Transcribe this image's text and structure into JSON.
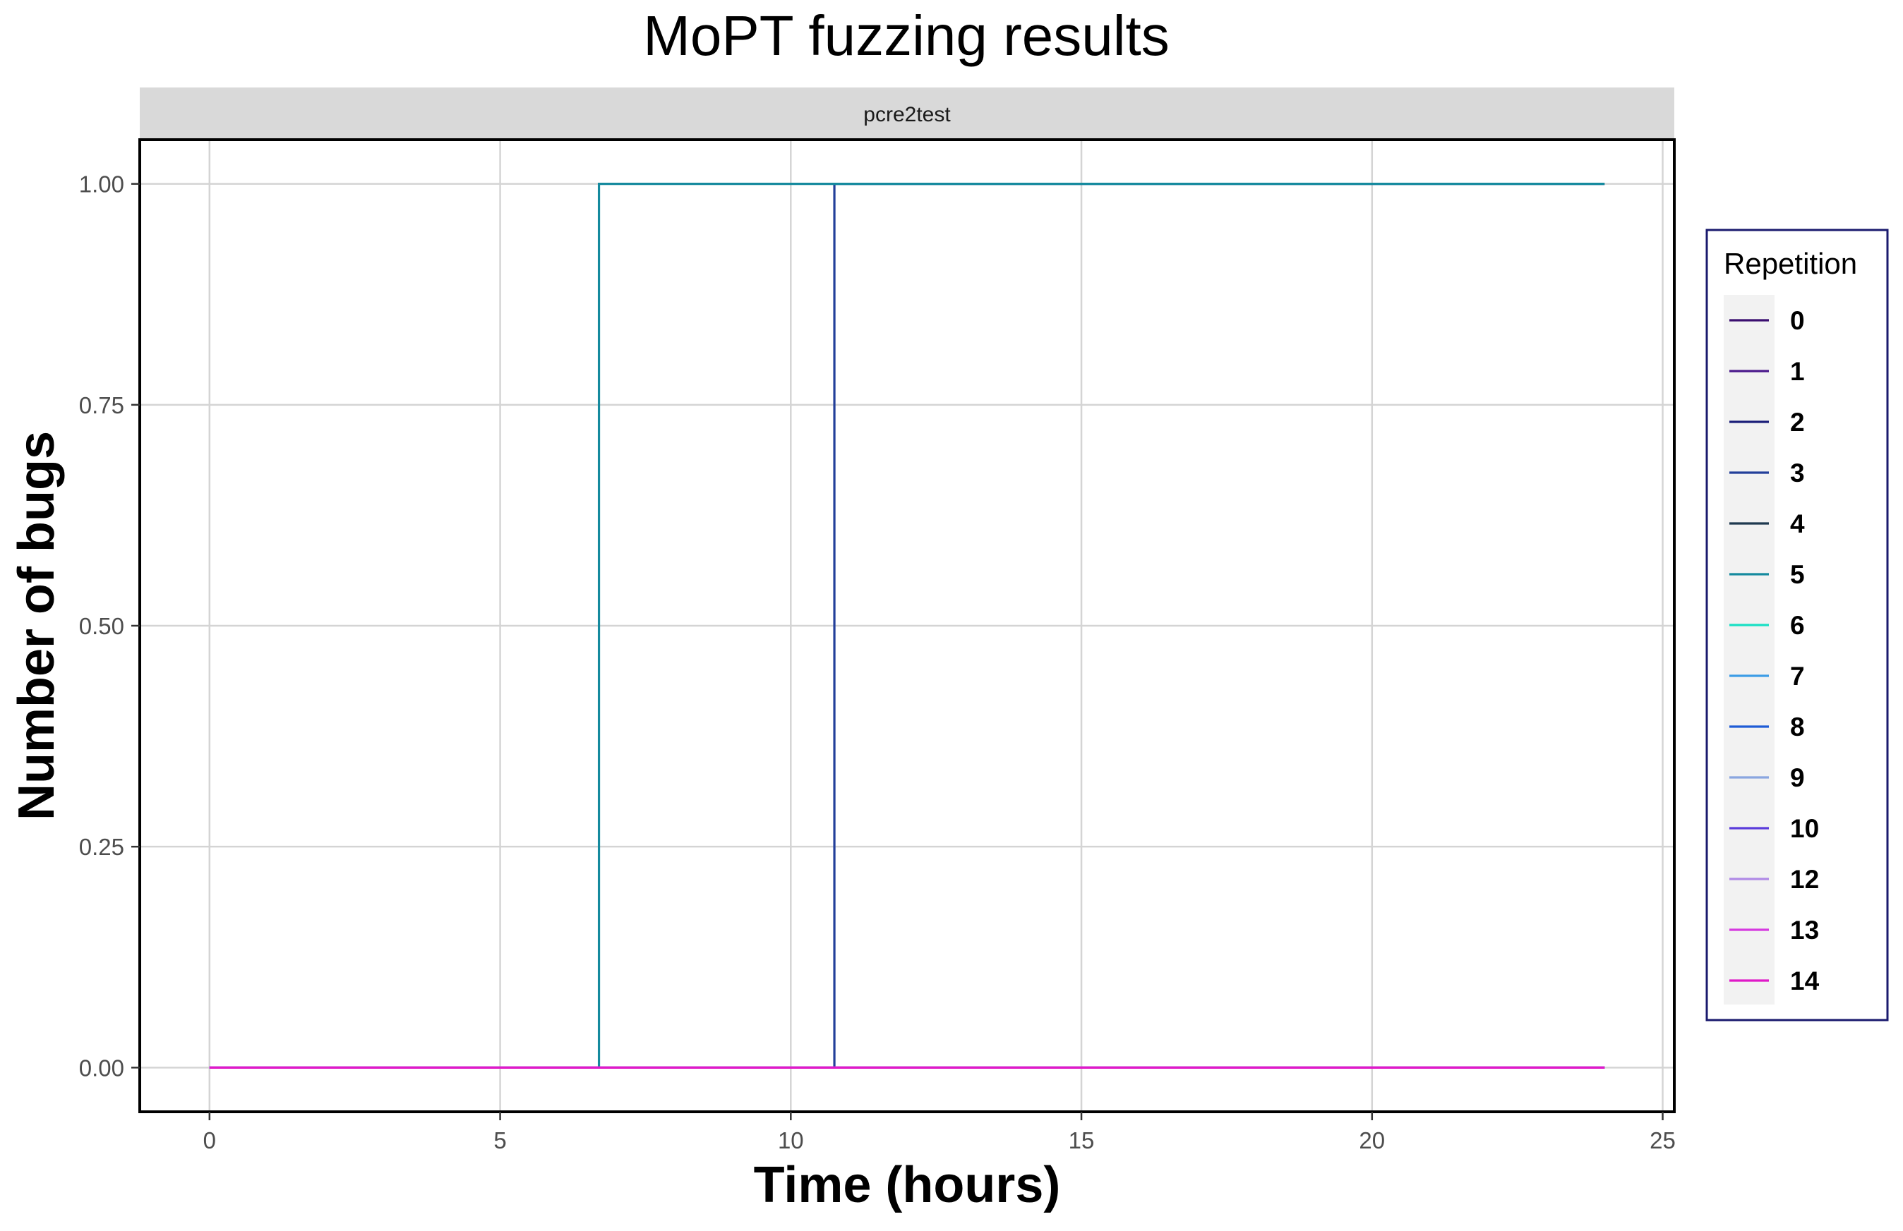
{
  "chart_data": {
    "type": "line",
    "line_shape": "step",
    "title": "MoPT fuzzing results",
    "facet_label": "pcre2test",
    "xlabel": "Time (hours)",
    "ylabel": "Number of bugs",
    "xlim": [
      -1.2,
      25.2
    ],
    "ylim": [
      -0.05,
      1.05
    ],
    "x_ticks": [
      0,
      5,
      10,
      15,
      20,
      25
    ],
    "y_ticks": [
      0.0,
      0.25,
      0.5,
      0.75,
      1.0
    ],
    "x_tick_labels": [
      "0",
      "5",
      "10",
      "15",
      "20",
      "25"
    ],
    "y_tick_labels": [
      "0.00",
      "0.25",
      "0.50",
      "0.75",
      "1.00"
    ],
    "grid": true,
    "legend": {
      "title": "Repetition",
      "placement": "right",
      "border_color": "#1a1a6e"
    },
    "series": [
      {
        "name": "0",
        "color": "#3b0f70",
        "x": [
          0,
          24
        ],
        "y": [
          0,
          0
        ]
      },
      {
        "name": "1",
        "color": "#4b1a8c",
        "x": [
          0,
          24
        ],
        "y": [
          0,
          0
        ]
      },
      {
        "name": "2",
        "color": "#1c1f7a",
        "x": [
          0,
          24
        ],
        "y": [
          0,
          0
        ]
      },
      {
        "name": "3",
        "color": "#233f9a",
        "x": [
          0,
          10.75,
          10.75,
          24
        ],
        "y": [
          0,
          0,
          1,
          1
        ]
      },
      {
        "name": "4",
        "color": "#1f3a50",
        "x": [
          0,
          24
        ],
        "y": [
          0,
          0
        ]
      },
      {
        "name": "5",
        "color": "#158a9e",
        "x": [
          0,
          6.7,
          6.7,
          24
        ],
        "y": [
          0,
          0,
          1,
          1
        ]
      },
      {
        "name": "6",
        "color": "#19e0c4",
        "x": [
          0,
          24
        ],
        "y": [
          0,
          0
        ]
      },
      {
        "name": "7",
        "color": "#3d9de6",
        "x": [
          0,
          24
        ],
        "y": [
          0,
          0
        ]
      },
      {
        "name": "8",
        "color": "#1f5cd6",
        "x": [
          0,
          24
        ],
        "y": [
          0,
          0
        ]
      },
      {
        "name": "9",
        "color": "#8aa6e0",
        "x": [
          0,
          24
        ],
        "y": [
          0,
          0
        ]
      },
      {
        "name": "10",
        "color": "#5b3ddb",
        "x": [
          0,
          24
        ],
        "y": [
          0,
          0
        ]
      },
      {
        "name": "12",
        "color": "#b08ae6",
        "x": [
          0,
          24
        ],
        "y": [
          0,
          0
        ]
      },
      {
        "name": "13",
        "color": "#d63ae0",
        "x": [
          0,
          24
        ],
        "y": [
          0,
          0
        ]
      },
      {
        "name": "14",
        "color": "#e01ac8",
        "x": [
          0,
          24
        ],
        "y": [
          0,
          0
        ]
      }
    ]
  }
}
